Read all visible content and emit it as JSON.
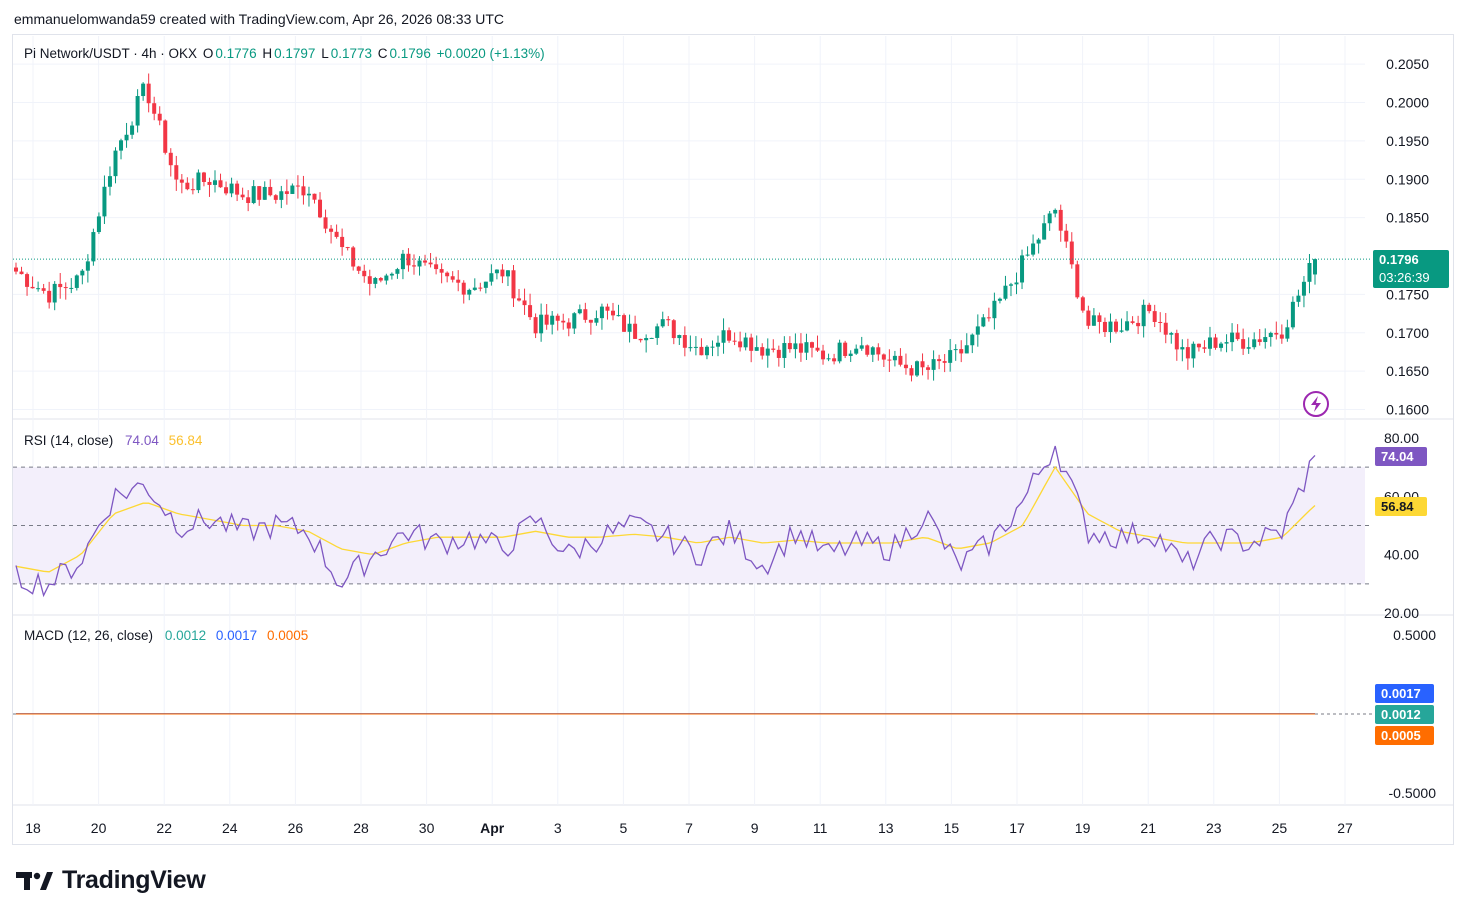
{
  "header": {
    "text": "emmanuelomwanda59 created with TradingView.com, Apr 26, 2026 08:33 UTC"
  },
  "price_legend": {
    "symbol": "Pi Network/USDT · 4h · OKX",
    "o_label": "O",
    "o": "0.1776",
    "h_label": "H",
    "h": "0.1797",
    "l_label": "L",
    "l": "0.1773",
    "c_label": "C",
    "c": "0.1796",
    "change": "+0.0020 (+1.13%)"
  },
  "rsi_legend": {
    "name": "RSI (14, close)",
    "rsi": "74.04",
    "ma": "56.84"
  },
  "macd_legend": {
    "name": "MACD (12, 26, close)",
    "hist": "0.0012",
    "macd": "0.0017",
    "signal": "0.0005"
  },
  "price_tag": {
    "price": "0.1796",
    "countdown": "03:26:39"
  },
  "rsi_tags": {
    "rsi": "74.04",
    "ma": "56.84"
  },
  "macd_tags": {
    "macd": "0.0017",
    "hist": "0.0012",
    "signal": "0.0005"
  },
  "brand": {
    "name": "TradingView",
    "logo_icon": "tradingview-logo-icon"
  },
  "colors": {
    "up": "#089981",
    "down": "#f23645",
    "rsi": "#7e57c2",
    "rsi_ma": "#fdd835",
    "macd": "#2962ff",
    "signal": "#ff6d00",
    "rsi_band": "#f3effb"
  },
  "chart_data": {
    "type": "candlestick",
    "x_ticks": [
      "18",
      "20",
      "22",
      "24",
      "26",
      "28",
      "30",
      "Apr",
      "3",
      "5",
      "7",
      "9",
      "11",
      "13",
      "15",
      "17",
      "19",
      "21",
      "23",
      "25",
      "27"
    ],
    "price_axis": {
      "ticks": [
        "0.2050",
        "0.2000",
        "0.1950",
        "0.1900",
        "0.1850",
        "0.1750",
        "0.1700",
        "0.1650",
        "0.1600"
      ],
      "range": [
        0.1589,
        0.2071
      ]
    },
    "rsi_axis": {
      "ticks": [
        "80.00",
        "60.00",
        "40.00",
        "20.00"
      ],
      "range": [
        20,
        80
      ],
      "upper_band": 70,
      "middle": 50,
      "lower_band": 30
    },
    "macd_axis": {
      "ticks": [
        "0.5000",
        "-0.5000"
      ],
      "range": [
        -0.5,
        0.5
      ]
    },
    "price_keypoints": [
      {
        "date": "Mar 17",
        "close": 0.178
      },
      {
        "date": "Mar 18",
        "close": 0.175
      },
      {
        "date": "Mar 19",
        "close": 0.177
      },
      {
        "date": "Mar 20",
        "close": 0.193
      },
      {
        "date": "Mar 21",
        "close": 0.202
      },
      {
        "date": "Mar 22",
        "close": 0.189
      },
      {
        "date": "Mar 23",
        "close": 0.19
      },
      {
        "date": "Mar 24",
        "close": 0.188
      },
      {
        "date": "Mar 25",
        "close": 0.188
      },
      {
        "date": "Mar 26",
        "close": 0.189
      },
      {
        "date": "Mar 27",
        "close": 0.181
      },
      {
        "date": "Mar 28",
        "close": 0.176
      },
      {
        "date": "Mar 29",
        "close": 0.18
      },
      {
        "date": "Mar 30",
        "close": 0.177
      },
      {
        "date": "Mar 31",
        "close": 0.176
      },
      {
        "date": "Apr 1",
        "close": 0.178
      },
      {
        "date": "Apr 2",
        "close": 0.171
      },
      {
        "date": "Apr 3",
        "close": 0.1715
      },
      {
        "date": "Apr 4",
        "close": 0.173
      },
      {
        "date": "Apr 5",
        "close": 0.17
      },
      {
        "date": "Apr 6",
        "close": 0.171
      },
      {
        "date": "Apr 7",
        "close": 0.168
      },
      {
        "date": "Apr 8",
        "close": 0.17
      },
      {
        "date": "Apr 9",
        "close": 0.168
      },
      {
        "date": "Apr 10",
        "close": 0.168
      },
      {
        "date": "Apr 11",
        "close": 0.167
      },
      {
        "date": "Apr 12",
        "close": 0.169
      },
      {
        "date": "Apr 13",
        "close": 0.166
      },
      {
        "date": "Apr 14",
        "close": 0.165
      },
      {
        "date": "Apr 15",
        "close": 0.167
      },
      {
        "date": "Apr 16",
        "close": 0.172
      },
      {
        "date": "Apr 17",
        "close": 0.179
      },
      {
        "date": "Apr 18",
        "close": 0.186
      },
      {
        "date": "Apr 19",
        "close": 0.171
      },
      {
        "date": "Apr 20",
        "close": 0.171
      },
      {
        "date": "Apr 21",
        "close": 0.173
      },
      {
        "date": "Apr 22",
        "close": 0.167
      },
      {
        "date": "Apr 23",
        "close": 0.169
      },
      {
        "date": "Apr 24",
        "close": 0.169
      },
      {
        "date": "Apr 25",
        "close": 0.1705
      },
      {
        "date": "Apr 26",
        "close": 0.1796
      }
    ],
    "rsi_keypoints": [
      32,
      30,
      38,
      60,
      64,
      50,
      52,
      48,
      50,
      48,
      30,
      40,
      48,
      44,
      46,
      42,
      52,
      40,
      46,
      50,
      46,
      40,
      48,
      36,
      48,
      40,
      44,
      42,
      54,
      36,
      44,
      58,
      78,
      48,
      46,
      48,
      36,
      46,
      44,
      48,
      74
    ],
    "rsi_ma_keypoints": [
      36,
      34,
      40,
      54,
      58,
      54,
      52,
      50,
      50,
      48,
      42,
      40,
      44,
      46,
      46,
      46,
      48,
      46,
      46,
      47,
      46,
      44,
      46,
      44,
      45,
      44,
      44,
      44,
      46,
      42,
      44,
      50,
      70,
      54,
      48,
      46,
      44,
      44,
      44,
      46,
      57
    ],
    "macd_value": 0.0017,
    "signal_value": 0.0005,
    "histogram_value": 0.0012
  }
}
